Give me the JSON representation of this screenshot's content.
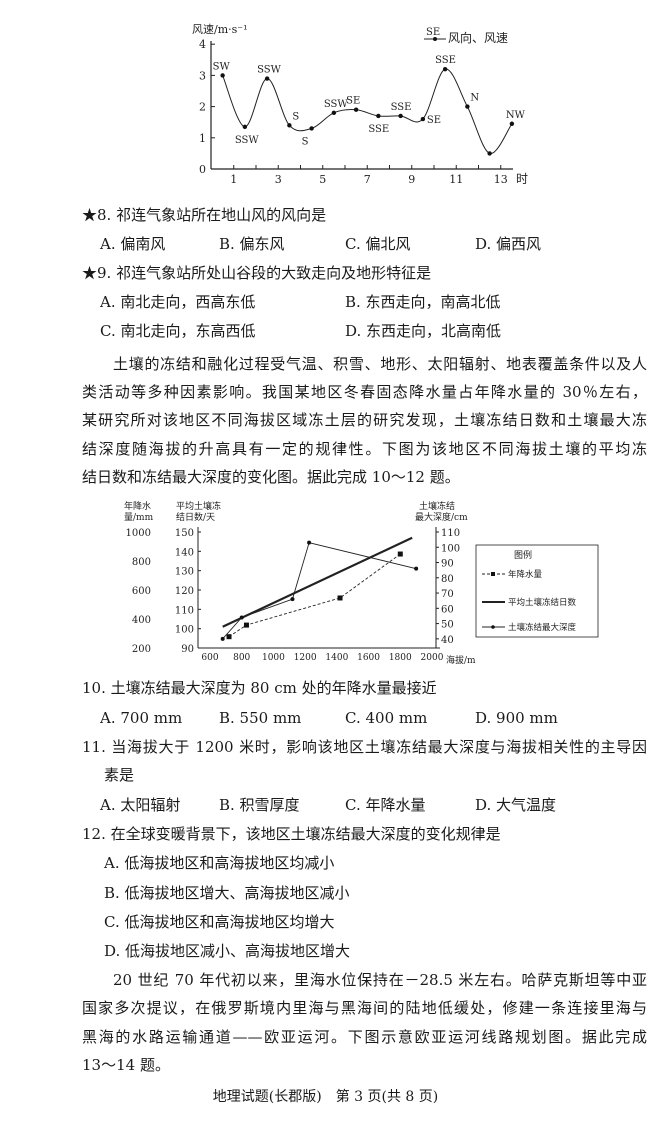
{
  "chart_data": [
    {
      "type": "line",
      "ylabel": "风速/m·s⁻¹",
      "xlabel": "时",
      "legend_label": "风向、风速",
      "legend_sample": "SE",
      "legend_position": "top-right",
      "ylim": [
        0,
        4
      ],
      "yticks": [
        "0",
        "1",
        "2",
        "3",
        "4"
      ],
      "xticks": [
        "1",
        "3",
        "5",
        "7",
        "9",
        "11",
        "13"
      ],
      "x": [
        0.5,
        1.5,
        2.5,
        3.5,
        4.5,
        5.5,
        6.5,
        7.5,
        8.5,
        9.5,
        10.5,
        11.5,
        12.5,
        13.5
      ],
      "values": [
        3.0,
        1.35,
        2.9,
        1.4,
        1.3,
        1.8,
        1.9,
        1.7,
        1.7,
        1.6,
        3.2,
        2.0,
        0.5,
        1.45
      ],
      "point_labels": [
        "SW",
        "SSW",
        "SSW",
        "S",
        "S",
        "SSW",
        "SE",
        "SSE",
        "SSE",
        "SE",
        "SSE",
        "N",
        "",
        "NW"
      ]
    },
    {
      "type": "line",
      "xlabel": "海拔/m",
      "xticks": [
        "600",
        "800",
        "1000",
        "1200",
        "1400",
        "1600",
        "1800",
        "2000"
      ],
      "xlim": [
        600,
        2000
      ],
      "axes": {
        "left_outer": {
          "label_line1": "年降水",
          "label_line2": "量/mm",
          "ticks": [
            "1000",
            "800",
            "600",
            "400",
            "200"
          ],
          "range": [
            200,
            1000
          ]
        },
        "left_inner": {
          "label_line1": "平均土壤冻",
          "label_line2": "结日数/天",
          "ticks": [
            "150",
            "140",
            "130",
            "120",
            "110",
            "100",
            "90"
          ],
          "range": [
            90,
            150
          ]
        },
        "right": {
          "label_line1": "土壤冻结",
          "label_line2": "最大深度/cm",
          "ticks": [
            "110",
            "100",
            "90",
            "80",
            "70",
            "60",
            "50",
            "40"
          ],
          "range": [
            34,
            110
          ]
        }
      },
      "legend_title": "图例",
      "legend_position": "right",
      "series": [
        {
          "name": "年降水量",
          "axis": "left_outer",
          "style": "dashed-square",
          "x": [
            720,
            830,
            1420,
            1800
          ],
          "values": [
            278,
            358,
            545,
            848
          ]
        },
        {
          "name": "平均土壤冻结日数",
          "axis": "left_inner",
          "style": "thick-solid",
          "x": [
            680,
            1875
          ],
          "values": [
            101,
            147
          ]
        },
        {
          "name": "土壤冻结最大深度",
          "axis": "right",
          "style": "solid-dot",
          "x": [
            680,
            800,
            1120,
            1225,
            1900
          ],
          "values": [
            40,
            54,
            66,
            103,
            86
          ]
        }
      ]
    }
  ],
  "q8": {
    "title": "★8. 祁连气象站所在地山风的风向是",
    "options": [
      "A. 偏南风",
      "B. 偏东风",
      "C. 偏北风",
      "D. 偏西风"
    ]
  },
  "q9": {
    "title": "★9. 祁连气象站所处山谷段的大致走向及地形特征是",
    "options": [
      "A. 南北走向，西高东低",
      "B. 东西走向，南高北低",
      "C. 南北走向，东高西低",
      "D. 东西走向，北高南低"
    ]
  },
  "para1": [
    "土壤的冻结和融化过程受气温、积雪、地形、太阳辐射、地表覆盖条件以及人",
    "类活动等多种因素影响。我国某地区冬春固态降水量占年降水量的 30％左右，",
    "某研究所对该地区不同海拔区域冻土层的研究发现，土壤冻结日数和土壤最大冻",
    "结深度随海拔的升高具有一定的规律性。下图为该地区不同海拔土壤的平均冻",
    "结日数和冻结最大深度的变化图。据此完成 10～12 题。"
  ],
  "q10": {
    "title": "10. 土壤冻结最大深度为 80 cm 处的年降水量最接近",
    "options": [
      "A. 700 mm",
      "B. 550 mm",
      "C. 400 mm",
      "D. 900 mm"
    ]
  },
  "q11": {
    "title_line1": "11. 当海拔大于 1200 米时，影响该地区土壤冻结最大深度与海拔相关性的主导因",
    "title_line2": "素是",
    "options": [
      "A. 太阳辐射",
      "B. 积雪厚度",
      "C. 年降水量",
      "D. 大气温度"
    ]
  },
  "q12": {
    "title": "12. 在全球变暖背景下，该地区土壤冻结最大深度的变化规律是",
    "options": [
      "A. 低海拔地区和高海拔地区均减小",
      "B. 低海拔地区增大、高海拔地区减小",
      "C. 低海拔地区和高海拔地区均增大",
      "D. 低海拔地区减小、高海拔地区增大"
    ]
  },
  "para2": [
    "20 世纪 70 年代初以来，里海水位保持在－28.5 米左右。哈萨克斯坦等中亚",
    "国家多次提议，在俄罗斯境内里海与黑海间的陆地低缓处，修建一条连接里海与",
    "黑海的水路运输通道——欧亚运河。下图示意欧亚运河线路规划图。据此完成",
    "13～14 题。"
  ],
  "footer": "地理试题(长郡版)　第 3 页(共 8 页)"
}
